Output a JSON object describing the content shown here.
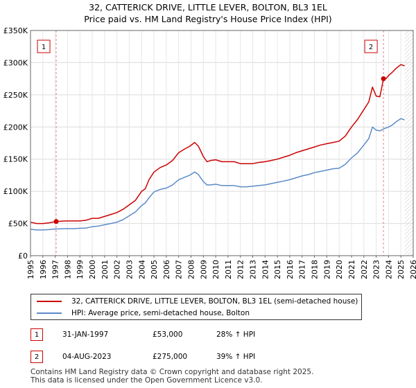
{
  "chart_data": {
    "type": "line",
    "title": "32, CATTERICK DRIVE, LITTLE LEVER, BOLTON, BL3 1EL",
    "subtitle": "Price paid vs. HM Land Registry's House Price Index (HPI)",
    "xlabel": "",
    "ylabel": "",
    "xlim": [
      1995,
      2026
    ],
    "ylim": [
      0,
      350000
    ],
    "grid": true,
    "x_ticks": [
      1995,
      1996,
      1997,
      1998,
      1999,
      2000,
      2001,
      2002,
      2003,
      2004,
      2005,
      2006,
      2007,
      2008,
      2009,
      2010,
      2011,
      2012,
      2013,
      2014,
      2015,
      2016,
      2017,
      2018,
      2019,
      2020,
      2021,
      2022,
      2023,
      2024,
      2025,
      2026
    ],
    "y_ticks": [
      {
        "value": 0,
        "label": "£0"
      },
      {
        "value": 50000,
        "label": "£50K"
      },
      {
        "value": 100000,
        "label": "£100K"
      },
      {
        "value": 150000,
        "label": "£150K"
      },
      {
        "value": 200000,
        "label": "£200K"
      },
      {
        "value": 250000,
        "label": "£250K"
      },
      {
        "value": 300000,
        "label": "£300K"
      },
      {
        "value": 350000,
        "label": "£350K"
      }
    ],
    "series": [
      {
        "name": "32, CATTERICK DRIVE, LITTLE LEVER, BOLTON, BL3 1EL (semi-detached house)",
        "color": "#cc0000",
        "x": [
          1995.0,
          1995.5,
          1996.0,
          1996.5,
          1997.08,
          1997.5,
          1998.0,
          1998.5,
          1999.0,
          1999.5,
          2000.0,
          2000.5,
          2001.0,
          2001.5,
          2002.0,
          2002.5,
          2003.0,
          2003.5,
          2004.0,
          2004.3,
          2004.6,
          2005.0,
          2005.5,
          2006.0,
          2006.5,
          2007.0,
          2007.5,
          2007.9,
          2008.3,
          2008.6,
          2009.0,
          2009.3,
          2009.6,
          2010.0,
          2010.5,
          2011.0,
          2011.5,
          2012.0,
          2012.5,
          2013.0,
          2013.5,
          2014.0,
          2014.5,
          2015.0,
          2015.5,
          2016.0,
          2016.5,
          2017.0,
          2017.5,
          2018.0,
          2018.5,
          2019.0,
          2019.5,
          2020.0,
          2020.5,
          2021.0,
          2021.5,
          2022.0,
          2022.4,
          2022.7,
          2023.0,
          2023.3,
          2023.59,
          2023.8,
          2024.0,
          2024.3,
          2024.6,
          2025.0,
          2025.3
        ],
        "values": [
          52000,
          50000,
          50000,
          51000,
          53000,
          53500,
          54000,
          54000,
          54000,
          55000,
          58000,
          58000,
          61000,
          64000,
          67000,
          72000,
          79000,
          86000,
          100000,
          104000,
          118000,
          130000,
          137000,
          141000,
          148000,
          160000,
          166000,
          170000,
          176000,
          170000,
          154000,
          146000,
          148000,
          149000,
          146000,
          146000,
          146000,
          143000,
          143000,
          143000,
          145000,
          146000,
          148000,
          150000,
          153000,
          156000,
          160000,
          163000,
          166000,
          169000,
          172000,
          174000,
          176000,
          178000,
          186000,
          200000,
          212000,
          227000,
          239000,
          262000,
          248000,
          247000,
          275000,
          275000,
          280000,
          285000,
          291000,
          297000,
          295000
        ]
      },
      {
        "name": "HPI: Average price, semi-detached house, Bolton",
        "color": "#5b8ac7",
        "x": [
          1995.0,
          1995.5,
          1996.0,
          1996.5,
          1997.0,
          1997.5,
          1998.0,
          1998.5,
          1999.0,
          1999.5,
          2000.0,
          2000.5,
          2001.0,
          2001.5,
          2002.0,
          2002.5,
          2003.0,
          2003.5,
          2004.0,
          2004.3,
          2004.6,
          2005.0,
          2005.5,
          2006.0,
          2006.5,
          2007.0,
          2007.5,
          2007.9,
          2008.3,
          2008.6,
          2009.0,
          2009.3,
          2009.6,
          2010.0,
          2010.5,
          2011.0,
          2011.5,
          2012.0,
          2012.5,
          2013.0,
          2013.5,
          2014.0,
          2014.5,
          2015.0,
          2015.5,
          2016.0,
          2016.5,
          2017.0,
          2017.5,
          2018.0,
          2018.5,
          2019.0,
          2019.5,
          2020.0,
          2020.5,
          2021.0,
          2021.5,
          2022.0,
          2022.4,
          2022.7,
          2023.0,
          2023.3,
          2023.6,
          2024.0,
          2024.3,
          2024.6,
          2025.0,
          2025.3
        ],
        "values": [
          41000,
          40000,
          40000,
          40500,
          41500,
          41800,
          42000,
          42000,
          42500,
          43000,
          45000,
          46000,
          48000,
          50000,
          52000,
          56000,
          62000,
          68000,
          78000,
          82000,
          90000,
          99000,
          103000,
          105000,
          110000,
          118000,
          122000,
          125000,
          130000,
          126000,
          115000,
          110000,
          110000,
          111000,
          109000,
          109000,
          109000,
          107000,
          107000,
          108000,
          109000,
          110000,
          112000,
          114000,
          116000,
          118000,
          121000,
          124000,
          126000,
          129000,
          131000,
          133000,
          135000,
          136000,
          142000,
          152000,
          160000,
          172000,
          182000,
          200000,
          195000,
          194000,
          197000,
          200000,
          203000,
          208000,
          213000,
          211000
        ]
      }
    ],
    "sales": [
      {
        "marker": "1",
        "x": 1997.08,
        "value": 53000
      },
      {
        "marker": "2",
        "x": 2023.59,
        "value": 275000
      }
    ],
    "projection_start": 2025.3
  },
  "legend": {
    "property_label": "32, CATTERICK DRIVE, LITTLE LEVER, BOLTON, BL3 1EL (semi-detached house)",
    "hpi_label": "HPI: Average price, semi-detached house, Bolton",
    "property_color": "#cc0000",
    "hpi_color": "#5b8ac7"
  },
  "sales_table": [
    {
      "marker": "1",
      "date": "31-JAN-1997",
      "price": "£53,000",
      "hpi_change": "28% ↑ HPI"
    },
    {
      "marker": "2",
      "date": "04-AUG-2023",
      "price": "£275,000",
      "hpi_change": "39% ↑ HPI"
    }
  ],
  "footer": {
    "line1": "Contains HM Land Registry data © Crown copyright and database right 2025.",
    "line2": "This data is licensed under the Open Government Licence v3.0."
  }
}
